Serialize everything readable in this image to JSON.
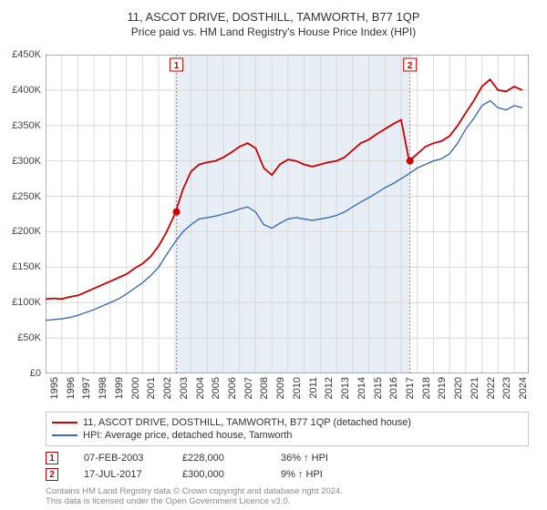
{
  "title_line1": "11, ASCOT DRIVE, DOSTHILL, TAMWORTH, B77 1QP",
  "title_line2": "Price paid vs. HM Land Registry's House Price Index (HPI)",
  "chart": {
    "type": "line",
    "background_color": "#ffffff",
    "grid_color": "#d9d9d9",
    "axis_color": "#666666",
    "highlight_band_color": "#e8eef6",
    "x_years": [
      "1995",
      "1996",
      "1997",
      "1998",
      "1999",
      "2000",
      "2001",
      "2002",
      "2003",
      "2004",
      "2005",
      "2006",
      "2007",
      "2008",
      "2009",
      "2010",
      "2011",
      "2012",
      "2013",
      "2014",
      "2015",
      "2016",
      "2017",
      "2018",
      "2019",
      "2020",
      "2021",
      "2022",
      "2023",
      "2024"
    ],
    "y_ticks": [
      0,
      50000,
      100000,
      150000,
      200000,
      250000,
      300000,
      350000,
      400000,
      450000
    ],
    "y_tick_labels": [
      "£0",
      "£50K",
      "£100K",
      "£150K",
      "£200K",
      "£250K",
      "£300K",
      "£350K",
      "£400K",
      "£450K"
    ],
    "ylim": [
      0,
      450000
    ],
    "series": [
      {
        "name": "property",
        "label": "11, ASCOT DRIVE, DOSTHILL, TAMWORTH, B77 1QP (detached house)",
        "color": "#cc0000",
        "line_width": 1.8,
        "data": [
          [
            1995.0,
            105000
          ],
          [
            1995.5,
            106000
          ],
          [
            1996.0,
            105000
          ],
          [
            1996.5,
            108000
          ],
          [
            1997.0,
            110000
          ],
          [
            1997.5,
            115000
          ],
          [
            1998.0,
            120000
          ],
          [
            1998.5,
            125000
          ],
          [
            1999.0,
            130000
          ],
          [
            1999.5,
            135000
          ],
          [
            2000.0,
            140000
          ],
          [
            2000.5,
            148000
          ],
          [
            2001.0,
            155000
          ],
          [
            2001.5,
            165000
          ],
          [
            2002.0,
            180000
          ],
          [
            2002.5,
            200000
          ],
          [
            2003.0,
            225000
          ],
          [
            2003.5,
            260000
          ],
          [
            2004.0,
            285000
          ],
          [
            2004.5,
            295000
          ],
          [
            2005.0,
            298000
          ],
          [
            2005.5,
            300000
          ],
          [
            2006.0,
            305000
          ],
          [
            2006.5,
            312000
          ],
          [
            2007.0,
            320000
          ],
          [
            2007.5,
            325000
          ],
          [
            2008.0,
            318000
          ],
          [
            2008.5,
            290000
          ],
          [
            2009.0,
            280000
          ],
          [
            2009.5,
            295000
          ],
          [
            2010.0,
            302000
          ],
          [
            2010.5,
            300000
          ],
          [
            2011.0,
            295000
          ],
          [
            2011.5,
            292000
          ],
          [
            2012.0,
            295000
          ],
          [
            2012.5,
            298000
          ],
          [
            2013.0,
            300000
          ],
          [
            2013.5,
            305000
          ],
          [
            2014.0,
            315000
          ],
          [
            2014.5,
            325000
          ],
          [
            2015.0,
            330000
          ],
          [
            2015.5,
            338000
          ],
          [
            2016.0,
            345000
          ],
          [
            2016.5,
            352000
          ],
          [
            2017.0,
            358000
          ],
          [
            2017.5,
            300000
          ],
          [
            2018.0,
            310000
          ],
          [
            2018.5,
            320000
          ],
          [
            2019.0,
            325000
          ],
          [
            2019.5,
            328000
          ],
          [
            2020.0,
            335000
          ],
          [
            2020.5,
            350000
          ],
          [
            2021.0,
            368000
          ],
          [
            2021.5,
            385000
          ],
          [
            2022.0,
            405000
          ],
          [
            2022.5,
            415000
          ],
          [
            2023.0,
            400000
          ],
          [
            2023.5,
            398000
          ],
          [
            2024.0,
            405000
          ],
          [
            2024.5,
            400000
          ]
        ]
      },
      {
        "name": "hpi",
        "label": "HPI: Average price, detached house, Tamworth",
        "color": "#3d6db5",
        "line_width": 1.4,
        "data": [
          [
            1995.0,
            75000
          ],
          [
            1995.5,
            76000
          ],
          [
            1996.0,
            77000
          ],
          [
            1996.5,
            79000
          ],
          [
            1997.0,
            82000
          ],
          [
            1997.5,
            86000
          ],
          [
            1998.0,
            90000
          ],
          [
            1998.5,
            95000
          ],
          [
            1999.0,
            100000
          ],
          [
            1999.5,
            105000
          ],
          [
            2000.0,
            112000
          ],
          [
            2000.5,
            120000
          ],
          [
            2001.0,
            128000
          ],
          [
            2001.5,
            138000
          ],
          [
            2002.0,
            150000
          ],
          [
            2002.5,
            168000
          ],
          [
            2003.0,
            185000
          ],
          [
            2003.5,
            200000
          ],
          [
            2004.0,
            210000
          ],
          [
            2004.5,
            218000
          ],
          [
            2005.0,
            220000
          ],
          [
            2005.5,
            222000
          ],
          [
            2006.0,
            225000
          ],
          [
            2006.5,
            228000
          ],
          [
            2007.0,
            232000
          ],
          [
            2007.5,
            235000
          ],
          [
            2008.0,
            228000
          ],
          [
            2008.5,
            210000
          ],
          [
            2009.0,
            205000
          ],
          [
            2009.5,
            212000
          ],
          [
            2010.0,
            218000
          ],
          [
            2010.5,
            220000
          ],
          [
            2011.0,
            218000
          ],
          [
            2011.5,
            216000
          ],
          [
            2012.0,
            218000
          ],
          [
            2012.5,
            220000
          ],
          [
            2013.0,
            223000
          ],
          [
            2013.5,
            228000
          ],
          [
            2014.0,
            235000
          ],
          [
            2014.5,
            242000
          ],
          [
            2015.0,
            248000
          ],
          [
            2015.5,
            255000
          ],
          [
            2016.0,
            262000
          ],
          [
            2016.5,
            268000
          ],
          [
            2017.0,
            275000
          ],
          [
            2017.5,
            282000
          ],
          [
            2018.0,
            290000
          ],
          [
            2018.5,
            295000
          ],
          [
            2019.0,
            300000
          ],
          [
            2019.5,
            303000
          ],
          [
            2020.0,
            310000
          ],
          [
            2020.5,
            325000
          ],
          [
            2021.0,
            345000
          ],
          [
            2021.5,
            360000
          ],
          [
            2022.0,
            378000
          ],
          [
            2022.5,
            385000
          ],
          [
            2023.0,
            375000
          ],
          [
            2023.5,
            372000
          ],
          [
            2024.0,
            378000
          ],
          [
            2024.5,
            375000
          ]
        ]
      }
    ],
    "sale_markers": [
      {
        "n": "1",
        "year": 2003.1,
        "value": 228000,
        "color": "#cc0000"
      },
      {
        "n": "2",
        "year": 2017.55,
        "value": 300000,
        "color": "#cc0000"
      }
    ],
    "marker_line_color": "#d97070",
    "label_fontsize": 11
  },
  "legend": {
    "rows": [
      {
        "color": "#cc0000",
        "label": "11, ASCOT DRIVE, DOSTHILL, TAMWORTH, B77 1QP (detached house)"
      },
      {
        "color": "#3d6db5",
        "label": "HPI: Average price, detached house, Tamworth"
      }
    ]
  },
  "sales": [
    {
      "n": "1",
      "date": "07-FEB-2003",
      "price": "£228,000",
      "vs_hpi": "36% ↑ HPI",
      "color": "#cc0000"
    },
    {
      "n": "2",
      "date": "17-JUL-2017",
      "price": "£300,000",
      "vs_hpi": "9% ↑ HPI",
      "color": "#cc0000"
    }
  ],
  "footnote_line1": "Contains HM Land Registry data © Crown copyright and database right 2024.",
  "footnote_line2": "This data is licensed under the Open Government Licence v3.0."
}
